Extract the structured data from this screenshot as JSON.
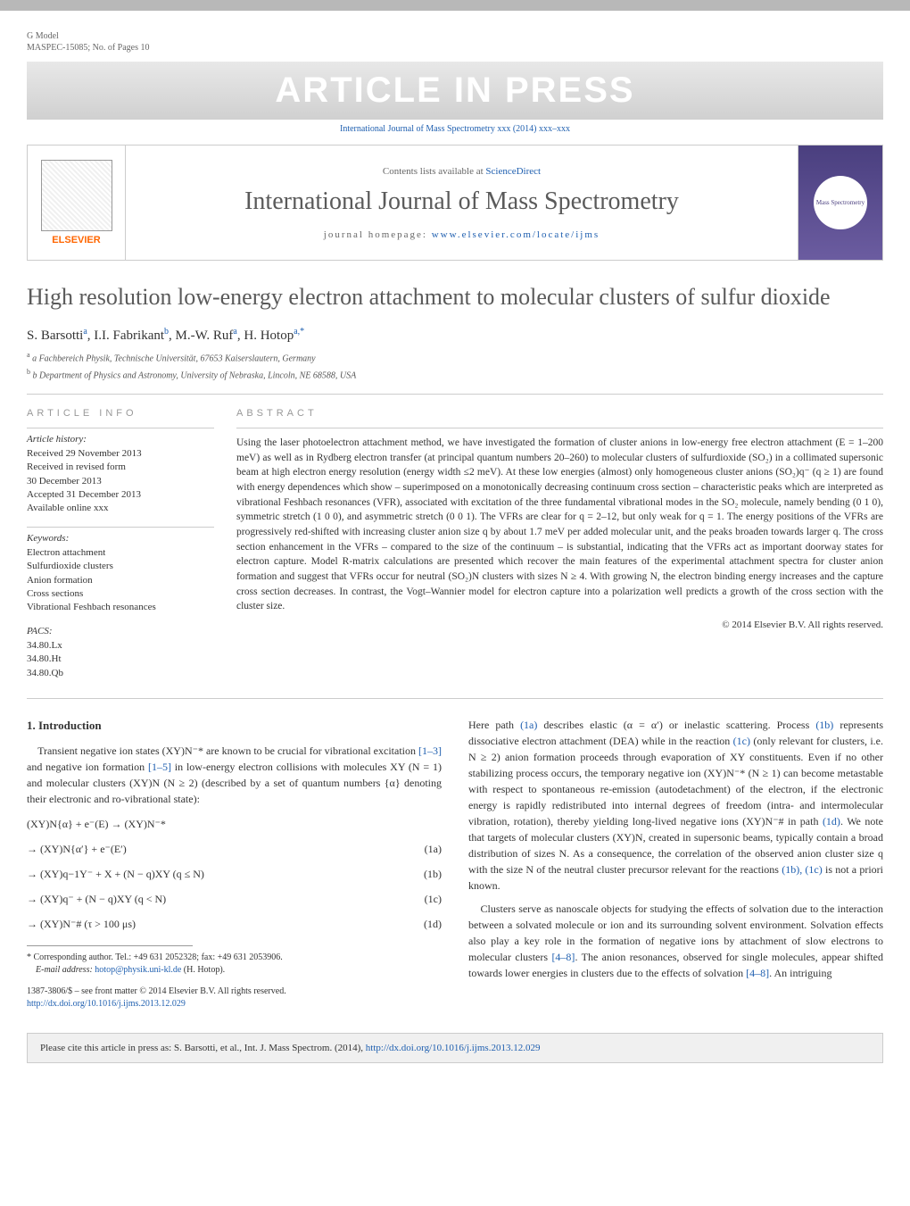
{
  "header": {
    "gmodel": "G Model",
    "maspec": "MASPEC-15085;   No. of Pages 10",
    "banner": "ARTICLE IN PRESS",
    "citation_line": "International Journal of Mass Spectrometry xxx (2014) xxx–xxx",
    "contents_prefix": "Contents lists available at ",
    "contents_link": "ScienceDirect",
    "journal_name": "International Journal of Mass Spectrometry",
    "homepage_prefix": "journal homepage: ",
    "homepage_link": "www.elsevier.com/locate/ijms",
    "elsevier": "ELSEVIER",
    "cover_text": "Mass Spectrometry"
  },
  "title": "High resolution low-energy electron attachment to molecular clusters of sulfur dioxide",
  "authors_html": "S. Barsotti<sup>a</sup>, I.I. Fabrikant<sup>b</sup>, M.-W. Ruf<sup>a</sup>, H. Hotop<sup>a,*</sup>",
  "affiliations": {
    "a": "a Fachbereich Physik, Technische Universität, 67653 Kaiserslautern, Germany",
    "b": "b Department of Physics and Astronomy, University of Nebraska, Lincoln, NE 68588, USA"
  },
  "info": {
    "heading": "ARTICLE INFO",
    "history_label": "Article history:",
    "history": [
      "Received 29 November 2013",
      "Received in revised form",
      "30 December 2013",
      "Accepted 31 December 2013",
      "Available online xxx"
    ],
    "keywords_label": "Keywords:",
    "keywords": [
      "Electron attachment",
      "Sulfurdioxide clusters",
      "Anion formation",
      "Cross sections",
      "Vibrational Feshbach resonances"
    ],
    "pacs_label": "PACS:",
    "pacs": [
      "34.80.Lx",
      "34.80.Ht",
      "34.80.Qb"
    ]
  },
  "abstract": {
    "heading": "ABSTRACT",
    "text": "Using the laser photoelectron attachment method, we have investigated the formation of cluster anions in low-energy free electron attachment (E = 1–200 meV) as well as in Rydberg electron transfer (at principal quantum numbers 20–260) to molecular clusters of sulfurdioxide (SO₂) in a collimated supersonic beam at high electron energy resolution (energy width ≤2 meV). At these low energies (almost) only homogeneous cluster anions (SO₂)q⁻ (q ≥ 1) are found with energy dependences which show – superimposed on a monotonically decreasing continuum cross section – characteristic peaks which are interpreted as vibrational Feshbach resonances (VFR), associated with excitation of the three fundamental vibrational modes in the SO₂ molecule, namely bending (0 1 0), symmetric stretch (1 0 0), and asymmetric stretch (0 0 1). The VFRs are clear for q = 2–12, but only weak for q = 1. The energy positions of the VFRs are progressively red-shifted with increasing cluster anion size q by about 1.7 meV per added molecular unit, and the peaks broaden towards larger q. The cross section enhancement in the VFRs – compared to the size of the continuum – is substantial, indicating that the VFRs act as important doorway states for electron capture. Model R-matrix calculations are presented which recover the main features of the experimental attachment spectra for cluster anion formation and suggest that VFRs occur for neutral (SO₂)N clusters with sizes N ≥ 4. With growing N, the electron binding energy increases and the capture cross section decreases. In contrast, the Vogt–Wannier model for electron capture into a polarization well predicts a growth of the cross section with the cluster size.",
    "copyright": "© 2014 Elsevier B.V. All rights reserved."
  },
  "section1": {
    "heading": "1.  Introduction",
    "para1_a": "Transient negative ion states (XY)N⁻* are known to be crucial for vibrational excitation ",
    "ref1": "[1–3]",
    "para1_b": " and negative ion formation ",
    "ref2": "[1–5]",
    "para1_c": " in low-energy electron collisions with molecules XY (N = 1) and molecular clusters (XY)N (N ≥ 2) (described by a set of quantum numbers {α} denoting their electronic and ro-vibrational state):"
  },
  "equations": {
    "eq0": "(XY)N{α} + e⁻(E) → (XY)N⁻*",
    "eq1a": "→ (XY)N{α′} + e⁻(E′)",
    "eq1a_num": "(1a)",
    "eq1b": "→ (XY)q−1Y⁻ + X + (N − q)XY (q ≤ N)",
    "eq1b_num": "(1b)",
    "eq1c": "→ (XY)q⁻ + (N − q)XY (q < N)",
    "eq1c_num": "(1c)",
    "eq1d": "→ (XY)N⁻# (τ > 100 μs)",
    "eq1d_num": "(1d)"
  },
  "col2": {
    "para1_a": "Here path ",
    "ref_1a": "(1a)",
    "para1_b": " describes elastic (α = α′) or inelastic scattering. Process ",
    "ref_1b": "(1b)",
    "para1_c": " represents dissociative electron attachment (DEA) while in the reaction ",
    "ref_1c": "(1c)",
    "para1_d": " (only relevant for clusters, i.e. N ≥ 2) anion formation proceeds through evaporation of XY constituents. Even if no other stabilizing process occurs, the temporary negative ion (XY)N⁻* (N ≥ 1) can become metastable with respect to spontaneous re-emission (autodetachment) of the electron, if the electronic energy is rapidly redistributed into internal degrees of freedom (intra- and intermolecular vibration, rotation), thereby yielding long-lived negative ions (XY)N⁻# in path ",
    "ref_1d": "(1d)",
    "para1_e": ". We note that targets of molecular clusters (XY)N, created in supersonic beams, typically contain a broad distribution of sizes N. As a consequence, the correlation of the observed anion cluster size q with the size N of the neutral cluster precursor relevant for the reactions ",
    "ref_1bc": "(1b), (1c)",
    "para1_f": " is not a priori known.",
    "para2_a": "Clusters serve as nanoscale objects for studying the effects of solvation due to the interaction between a solvated molecule or ion and its surrounding solvent environment. Solvation effects also play a key role in the formation of negative ions by attachment of slow electrons to molecular clusters ",
    "ref_48a": "[4–8]",
    "para2_b": ". The anion resonances, observed for single molecules, appear shifted towards lower energies in clusters due to the effects of solvation ",
    "ref_48b": "[4–8]",
    "para2_c": ". An intriguing"
  },
  "footnote": {
    "corresponding": "* Corresponding author. Tel.: +49 631 2052328; fax: +49 631 2053906.",
    "email_label": "E-mail address: ",
    "email": "hotop@physik.uni-kl.de",
    "email_suffix": " (H. Hotop)."
  },
  "front_matter": {
    "issn": "1387-3806/$ – see front matter © 2014 Elsevier B.V. All rights reserved.",
    "doi": "http://dx.doi.org/10.1016/j.ijms.2013.12.029"
  },
  "cite_footer": {
    "prefix": "Please cite this article in press as: S. Barsotti, et al., Int. J. Mass Spectrom. (2014), ",
    "link": "http://dx.doi.org/10.1016/j.ijms.2013.12.029"
  },
  "colors": {
    "link": "#2060b0",
    "gray_text": "#5a5a5a",
    "orange": "#ff6600",
    "banner_bg": "#d0d0d0",
    "cover_bg": "#4a3f7f"
  }
}
